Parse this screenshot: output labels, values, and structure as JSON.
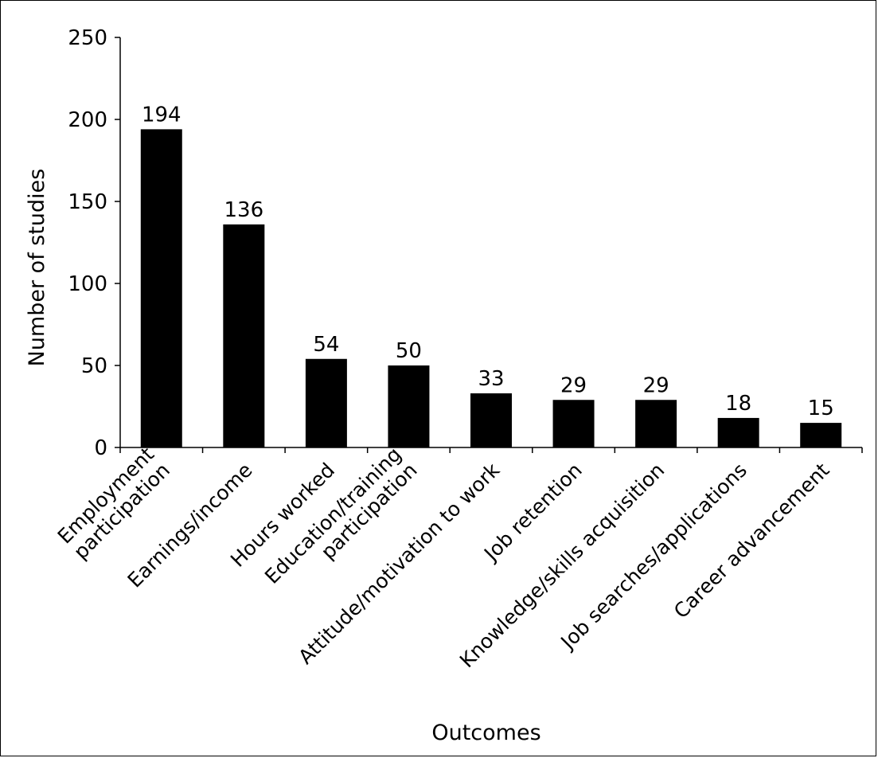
{
  "chart_data": {
    "type": "bar",
    "title": "",
    "xlabel": "Outcomes",
    "ylabel": "Number of studies",
    "ylim": [
      0,
      250
    ],
    "yticks": [
      0,
      50,
      100,
      150,
      200,
      250
    ],
    "grid": false,
    "legend": "none",
    "bar_color": "#000000",
    "categories": [
      [
        "Employment",
        "participation"
      ],
      [
        "Earnings/income"
      ],
      [
        "Hours worked"
      ],
      [
        "Education/training",
        "participation"
      ],
      [
        "Attitude/motivation to work"
      ],
      [
        "Job retention"
      ],
      [
        "Knowledge/skills acquisition"
      ],
      [
        "Job searches/applications"
      ],
      [
        "Career advancement"
      ]
    ],
    "values": [
      194,
      136,
      54,
      50,
      33,
      29,
      29,
      18,
      15
    ],
    "data_labels": [
      "194",
      "136",
      "54",
      "50",
      "33",
      "29",
      "29",
      "18",
      "15"
    ]
  }
}
